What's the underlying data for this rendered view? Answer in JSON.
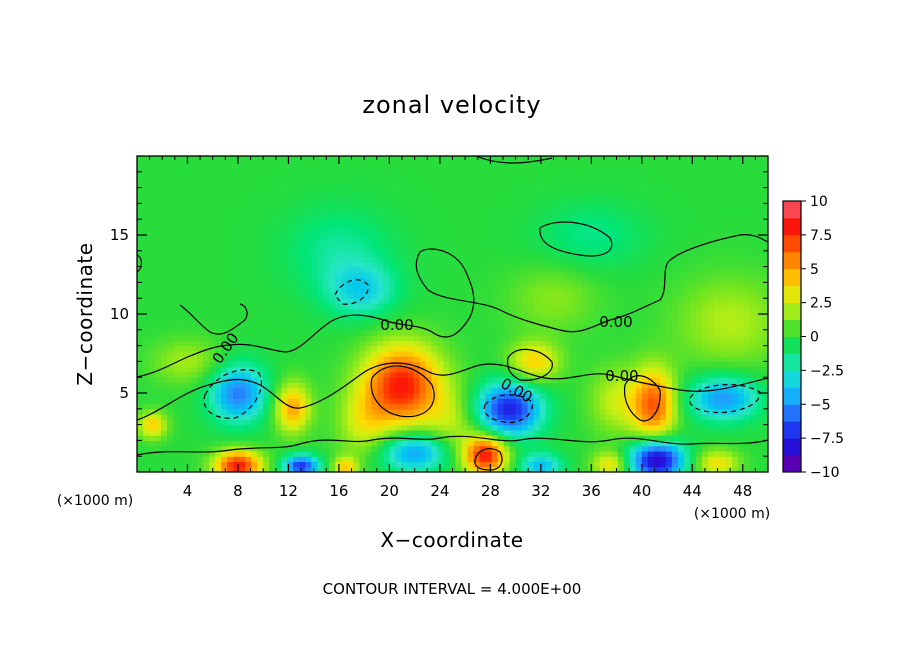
{
  "chart_data": {
    "type": "heatmap",
    "title": "zonal velocity",
    "xlabel": "X−coordinate",
    "ylabel": "Z−coordinate",
    "x_unit_left": "(×1000 m)",
    "x_unit_right": "(×1000 m)",
    "xlim": [
      0,
      50
    ],
    "ylim": [
      0,
      20
    ],
    "x_ticks": [
      4,
      8,
      12,
      16,
      20,
      24,
      28,
      32,
      36,
      40,
      44,
      48
    ],
    "y_ticks": [
      5,
      10,
      15
    ],
    "colorbar": {
      "range": [
        -10,
        10
      ],
      "ticks": [
        10,
        7.5,
        5,
        2.5,
        0,
        -2.5,
        -5,
        -7.5,
        -10
      ],
      "tick_labels": [
        "10",
        "7.5",
        "5",
        "2.5",
        "0",
        "−2.5",
        "−5",
        "−7.5",
        "−10"
      ]
    },
    "contour_labels": [
      "0.00",
      "0.00",
      "0.00",
      "0.00",
      "0.00"
    ],
    "contour_interval_text": "CONTOUR INTERVAL = 4.000E+00",
    "features": [
      {
        "x": 21,
        "z": 5.5,
        "value": 8,
        "sigma": [
          2.2,
          1.8
        ]
      },
      {
        "x": 29.5,
        "z": 4,
        "value": -7.5,
        "sigma": [
          1.8,
          1.2
        ]
      },
      {
        "x": 41,
        "z": 4.3,
        "value": 6.5,
        "sigma": [
          1.2,
          1.6
        ]
      },
      {
        "x": 46.5,
        "z": 4.7,
        "value": -5,
        "sigma": [
          2.0,
          1.0
        ]
      },
      {
        "x": 8,
        "z": 5,
        "value": -5.5,
        "sigma": [
          1.6,
          1.3
        ]
      },
      {
        "x": 12.3,
        "z": 4.1,
        "value": 5,
        "sigma": [
          1.0,
          1.1
        ]
      },
      {
        "x": 31.5,
        "z": 7,
        "value": 4,
        "sigma": [
          1.4,
          0.9
        ]
      },
      {
        "x": 8,
        "z": 0.4,
        "value": 8,
        "sigma": [
          1.3,
          0.7
        ]
      },
      {
        "x": 13,
        "z": 0.4,
        "value": -7,
        "sigma": [
          1.0,
          0.5
        ]
      },
      {
        "x": 16.5,
        "z": 0.3,
        "value": 4,
        "sigma": [
          0.7,
          0.5
        ]
      },
      {
        "x": 22,
        "z": 1.3,
        "value": -5,
        "sigma": [
          2.0,
          0.9
        ]
      },
      {
        "x": 27.6,
        "z": 1.1,
        "value": 8,
        "sigma": [
          1.2,
          0.9
        ]
      },
      {
        "x": 32,
        "z": 0.4,
        "value": -4,
        "sigma": [
          1.2,
          0.6
        ]
      },
      {
        "x": 37.5,
        "z": 0.5,
        "value": 3.5,
        "sigma": [
          1.0,
          0.6
        ]
      },
      {
        "x": 41.2,
        "z": 0.8,
        "value": -9,
        "sigma": [
          1.5,
          0.9
        ]
      },
      {
        "x": 46,
        "z": 0.6,
        "value": 3.5,
        "sigma": [
          1.2,
          0.6
        ]
      },
      {
        "x": 1.2,
        "z": 3.0,
        "value": 4,
        "sigma": [
          0.8,
          0.6
        ]
      },
      {
        "x": 17.8,
        "z": 11.5,
        "value": -3,
        "sigma": [
          2.0,
          1.2
        ]
      },
      {
        "x": 16,
        "z": 14,
        "value": -1.8,
        "sigma": [
          3.0,
          2.0
        ]
      },
      {
        "x": 18,
        "z": 3,
        "value": 2.5,
        "sigma": [
          1.5,
          1.5
        ]
      },
      {
        "x": 38,
        "z": 4.5,
        "value": 2.5,
        "sigma": [
          1.5,
          1.5
        ]
      },
      {
        "x": 47,
        "z": 9.5,
        "value": 2.2,
        "sigma": [
          3.0,
          2.0
        ]
      },
      {
        "x": 33,
        "z": 11,
        "value": 1.5,
        "sigma": [
          2.5,
          1.5
        ]
      },
      {
        "x": 36,
        "z": 15,
        "value": -1.5,
        "sigma": [
          3.0,
          1.5
        ]
      },
      {
        "x": 4,
        "z": 7,
        "value": 2.0,
        "sigma": [
          2.0,
          1.0
        ]
      },
      {
        "x": 25,
        "z": 3,
        "value": 2.0,
        "sigma": [
          1.5,
          1.5
        ]
      }
    ]
  }
}
